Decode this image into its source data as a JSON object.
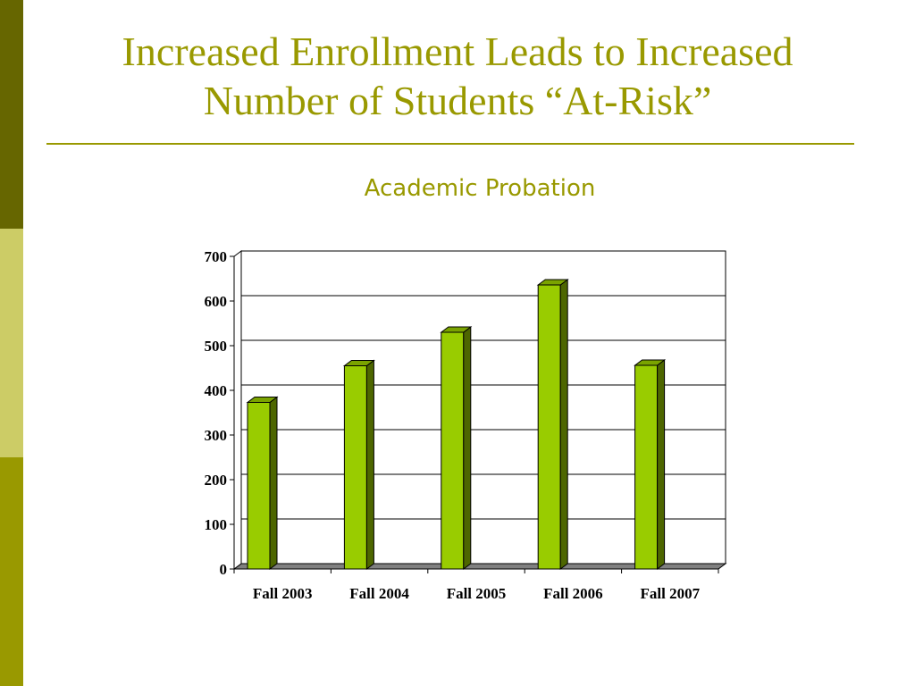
{
  "slide": {
    "title_line1": "Increased Enrollment Leads to Increased",
    "title_line2": "Number of Students “At-Risk”",
    "accent_color": "#999900",
    "side_colors": [
      "#666600",
      "#cccc66",
      "#999900"
    ]
  },
  "chart_data": {
    "type": "bar",
    "title": "Academic Probation",
    "categories": [
      "Fall 2003",
      "Fall 2004",
      "Fall 2005",
      "Fall 2006",
      "Fall 2007"
    ],
    "values": [
      373,
      455,
      530,
      636,
      456
    ],
    "xlabel": "",
    "ylabel": "",
    "ylim": [
      0,
      700
    ],
    "yticks": [
      0,
      100,
      200,
      300,
      400,
      500,
      600,
      700
    ],
    "grid": true,
    "legend": false,
    "bar_color": "#99cc00",
    "bar_side_color": "#4d6600",
    "bar_top_color": "#7aa300"
  }
}
